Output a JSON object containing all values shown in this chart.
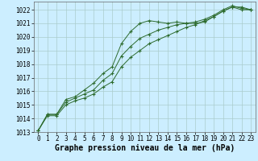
{
  "background_color": "#cceeff",
  "grid_color": "#aacccc",
  "line_color": "#2d6b2d",
  "marker": "+",
  "xlabel": "Graphe pression niveau de la mer (hPa)",
  "xlabel_fontsize": 7,
  "tick_fontsize": 6,
  "xlim": [
    -0.5,
    23.5
  ],
  "ylim": [
    1013,
    1022.6
  ],
  "yticks": [
    1013,
    1014,
    1015,
    1016,
    1017,
    1018,
    1019,
    1020,
    1021,
    1022
  ],
  "xticks": [
    0,
    1,
    2,
    3,
    4,
    5,
    6,
    7,
    8,
    9,
    10,
    11,
    12,
    13,
    14,
    15,
    16,
    17,
    18,
    19,
    20,
    21,
    22,
    23
  ],
  "series": [
    [
      1013.1,
      1014.3,
      1014.3,
      1015.4,
      1015.6,
      1016.1,
      1016.6,
      1017.3,
      1017.8,
      1019.5,
      1020.4,
      1021.0,
      1021.2,
      1021.1,
      1021.0,
      1021.1,
      1021.0,
      1021.0,
      1021.1,
      1021.5,
      1021.9,
      1022.2,
      1022.2,
      1022.0
    ],
    [
      1013.1,
      1014.3,
      1014.3,
      1015.2,
      1015.5,
      1015.8,
      1016.1,
      1016.8,
      1017.3,
      1018.6,
      1019.3,
      1019.9,
      1020.2,
      1020.5,
      1020.7,
      1020.9,
      1021.0,
      1021.1,
      1021.3,
      1021.6,
      1022.0,
      1022.3,
      1022.1,
      1022.0
    ],
    [
      1013.1,
      1014.2,
      1014.2,
      1015.0,
      1015.3,
      1015.5,
      1015.8,
      1016.3,
      1016.7,
      1017.8,
      1018.5,
      1019.0,
      1019.5,
      1019.8,
      1020.1,
      1020.4,
      1020.7,
      1020.9,
      1021.2,
      1021.5,
      1021.9,
      1022.2,
      1022.0,
      1022.0
    ]
  ]
}
